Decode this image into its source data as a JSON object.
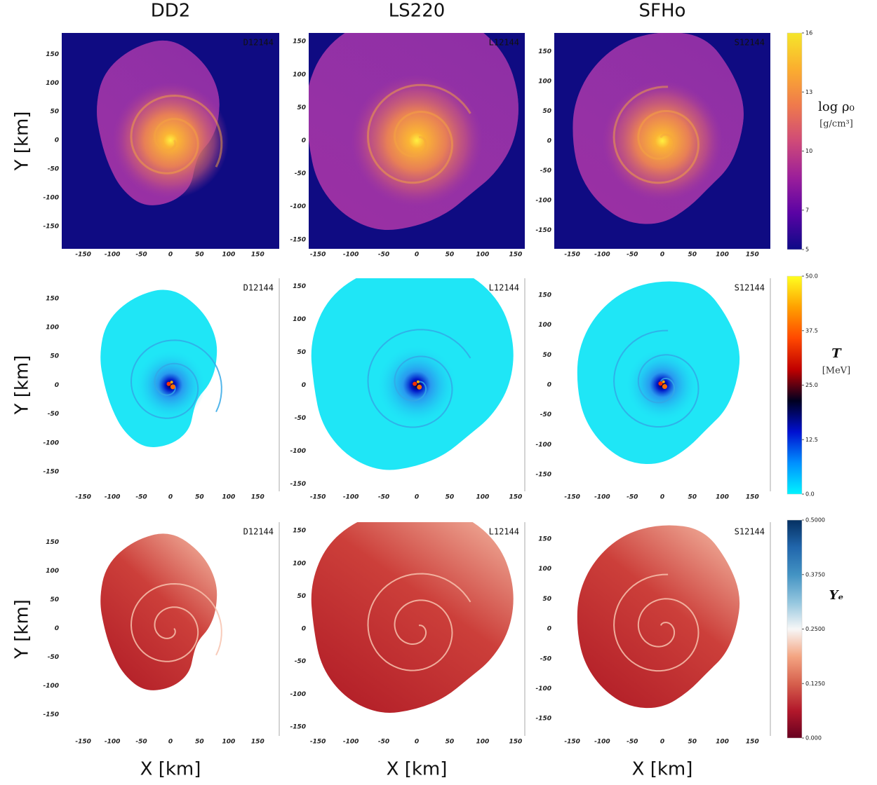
{
  "figure": {
    "column_titles": [
      "DD2",
      "LS220",
      "SFHo"
    ],
    "y_label": "Y [km]",
    "x_label": "X [km]"
  },
  "chart_data": [
    {
      "type": "heatmap",
      "annotation": "D12144",
      "xlim": [
        -187,
        187
      ],
      "ylim": [
        -189,
        187
      ],
      "xticks": [
        -150,
        -100,
        -50,
        0,
        50,
        100,
        150
      ],
      "yticks": [
        -150,
        -100,
        -50,
        0,
        50,
        100,
        150
      ]
    },
    {
      "type": "heatmap",
      "annotation": "L12144",
      "xlim": [
        -164,
        164
      ],
      "ylim": [
        -164,
        163
      ],
      "xticks": [
        -150,
        -100,
        -50,
        0,
        50,
        100,
        150
      ],
      "yticks": [
        -150,
        -100,
        -50,
        0,
        50,
        100,
        150
      ]
    },
    {
      "type": "heatmap",
      "annotation": "S12144",
      "xlim": [
        -180,
        180
      ],
      "ylim": [
        -181,
        181
      ],
      "xticks": [
        -150,
        -100,
        -50,
        0,
        50,
        100,
        150
      ],
      "yticks": [
        -150,
        -100,
        -50,
        0,
        50,
        100,
        150
      ]
    },
    {
      "type": "heatmap",
      "annotation": "D12144",
      "xlim": [
        -187,
        187
      ],
      "ylim": [
        -184,
        185
      ],
      "xticks": [
        -150,
        -100,
        -50,
        0,
        50,
        100,
        150
      ],
      "yticks": [
        -150,
        -100,
        -50,
        0,
        50,
        100,
        150
      ]
    },
    {
      "type": "heatmap",
      "annotation": "L12144",
      "xlim": [
        -164,
        164
      ],
      "ylim": [
        -161,
        162
      ],
      "xticks": [
        -150,
        -100,
        -50,
        0,
        50,
        100,
        150
      ],
      "yticks": [
        -150,
        -100,
        -50,
        0,
        50,
        100,
        150
      ]
    },
    {
      "type": "heatmap",
      "annotation": "S12144",
      "xlim": [
        -180,
        180
      ],
      "ylim": [
        -178,
        178
      ],
      "xticks": [
        -150,
        -100,
        -50,
        0,
        50,
        100,
        150
      ],
      "yticks": [
        -150,
        -100,
        -50,
        0,
        50,
        100,
        150
      ]
    },
    {
      "type": "heatmap",
      "annotation": "D12144",
      "xlim": [
        -187,
        187
      ],
      "ylim": [
        -187,
        185
      ],
      "xticks": [
        -150,
        -100,
        -50,
        0,
        50,
        100,
        150
      ],
      "yticks": [
        -150,
        -100,
        -50,
        0,
        50,
        100,
        150
      ]
    },
    {
      "type": "heatmap",
      "annotation": "L12144",
      "xlim": [
        -164,
        164
      ],
      "ylim": [
        -164,
        163
      ],
      "xticks": [
        -150,
        -100,
        -50,
        0,
        50,
        100,
        150
      ],
      "yticks": [
        -150,
        -100,
        -50,
        0,
        50,
        100,
        150
      ]
    },
    {
      "type": "heatmap",
      "annotation": "S12144",
      "xlim": [
        -180,
        180
      ],
      "ylim": [
        -179,
        178
      ],
      "xticks": [
        -150,
        -100,
        -50,
        0,
        50,
        100,
        150
      ],
      "yticks": [
        -150,
        -100,
        -50,
        0,
        50,
        100,
        150
      ]
    }
  ],
  "colorbars": [
    {
      "label": "log ρ₀",
      "unit": "[g/cm³]",
      "lim": [
        5,
        16
      ],
      "ticks": [
        5,
        7,
        10,
        13,
        16
      ],
      "colors": [
        "#0d0a87",
        "#5a03a4",
        "#9c1f9a",
        "#cf4a78",
        "#ef7a4c",
        "#fbae2f",
        "#f5e62a"
      ]
    },
    {
      "label": "T",
      "unit": "[MeV]",
      "lim": [
        0,
        50
      ],
      "ticks": [
        {
          "value": 0,
          "label": "0.0"
        },
        12.5,
        {
          "value": 25,
          "label": "25.0"
        },
        37.5,
        {
          "value": 50,
          "label": "50.0"
        }
      ],
      "colors": [
        "#00f4ff",
        "#0090ff",
        "#0010d0",
        "#000020",
        "#c00000",
        "#ff4800",
        "#ffa000",
        "#ffff20"
      ]
    },
    {
      "label": "Yₑ",
      "unit": "",
      "lim": [
        0,
        0.5
      ],
      "ticks": [
        {
          "value": 0,
          "label": "0.000"
        },
        {
          "value": 0.125,
          "label": "0.1250"
        },
        {
          "value": 0.25,
          "label": "0.2500"
        },
        {
          "value": 0.375,
          "label": "0.3750"
        },
        {
          "value": 0.5,
          "label": "0.5000"
        }
      ],
      "colors": [
        "#67001f",
        "#b2182b",
        "#d6604d",
        "#f4a582",
        "#f7f7f7",
        "#92c5de",
        "#4393c3",
        "#2166ac",
        "#053061"
      ]
    }
  ]
}
